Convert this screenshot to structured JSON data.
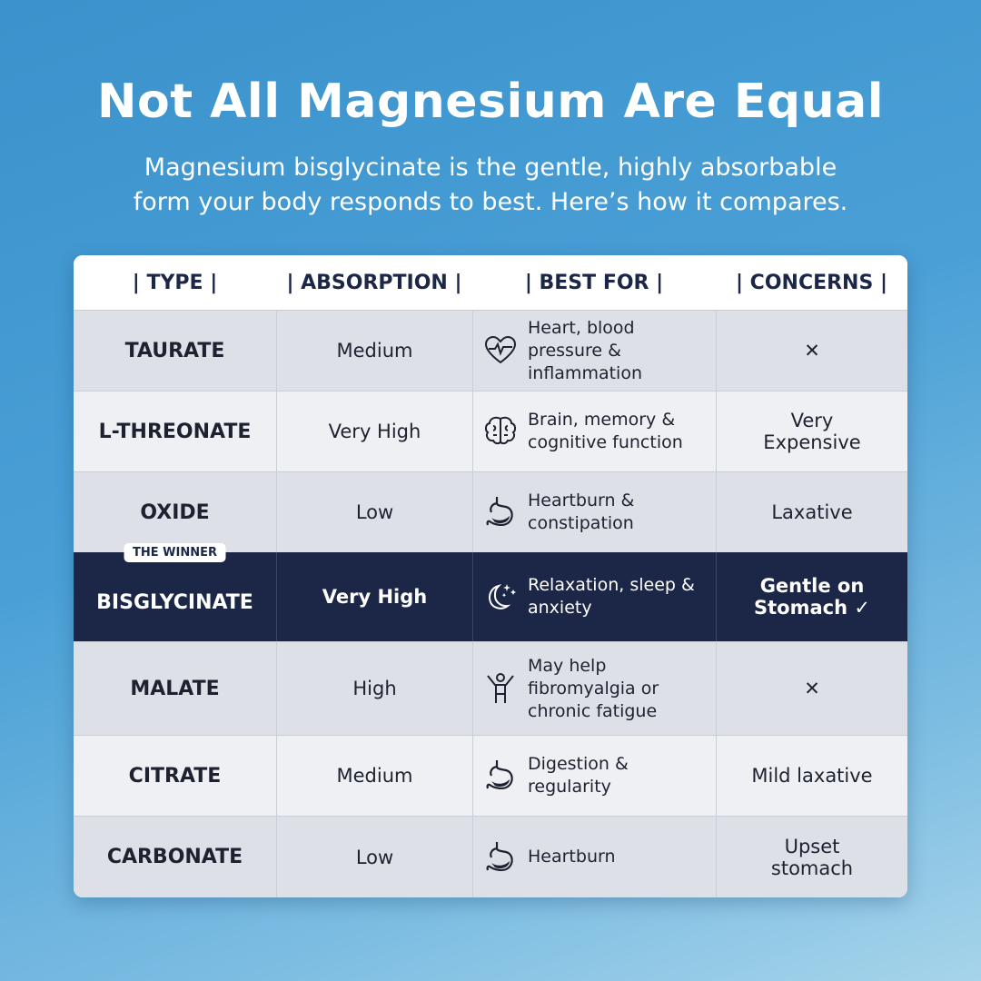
{
  "title": "Not All Magnesium Are Equal",
  "subtitle": [
    "Magnesium bisglycinate is the gentle, highly absorbable",
    "form your body responds to best. Here’s how it compares."
  ],
  "columns": [
    "| TYPE |",
    "| ABSORPTION |",
    "| BEST FOR |",
    "| CONCERNS |"
  ],
  "colors": {
    "accent_navy": "#1c2748",
    "row_gray": "#dde1e7",
    "row_light": "#eef0f3"
  },
  "rows": [
    {
      "type": "TAURATE",
      "absorption": "Medium",
      "best_for": "Heart, blood pressure & inflammation",
      "icon": "heart-pulse-icon",
      "concerns": "✕"
    },
    {
      "type": "L-THREONATE",
      "absorption": "Very High",
      "best_for": "Brain, memory & cognitive function",
      "icon": "brain-icon",
      "concerns": "Very Expensive"
    },
    {
      "type": "OXIDE",
      "absorption": "Low",
      "best_for": "Heartburn & constipation",
      "icon": "stomach-icon",
      "concerns": "Laxative"
    },
    {
      "type": "BISGLYCINATE",
      "badge": "THE WINNER",
      "absorption": "Very High",
      "best_for": "Relaxation, sleep & anxiety",
      "icon": "moon-stars-icon",
      "concerns": "Gentle on Stomach ✓"
    },
    {
      "type": "MALATE",
      "absorption": "High",
      "best_for": "May help fibromyalgia or chronic fatigue",
      "icon": "person-arms-up-icon",
      "concerns": "✕"
    },
    {
      "type": "CITRATE",
      "absorption": "Medium",
      "best_for": "Digestion & regularity",
      "icon": "stomach-icon",
      "concerns": "Mild laxative"
    },
    {
      "type": "CARBONATE",
      "absorption": "Low",
      "best_for": "Heartburn",
      "icon": "stomach-icon",
      "concerns": "Upset stomach"
    }
  ]
}
